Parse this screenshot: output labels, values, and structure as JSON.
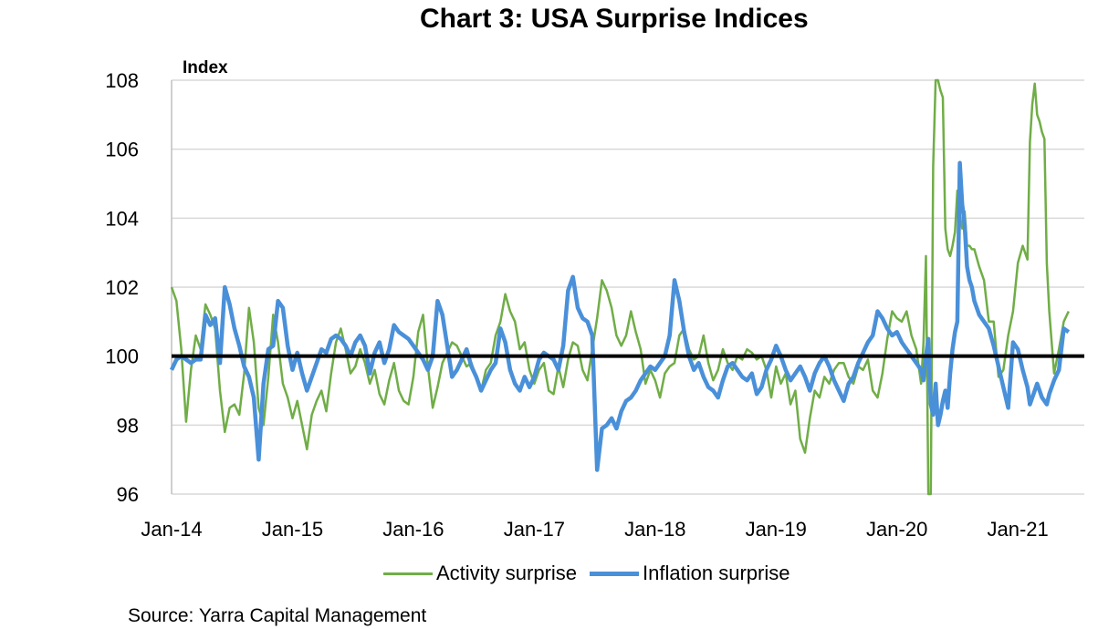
{
  "title": "Chart 3: USA Surprise Indices",
  "source": "Source: Yarra Capital Management",
  "colors": {
    "activity": "#70AD47",
    "inflation": "#4A90D9",
    "baseline": "#000000",
    "grid": "#D9D9D9"
  },
  "chart_data": {
    "type": "line",
    "title": "Chart 3: USA Surprise Indices",
    "ylabel": "Index",
    "xlabel": "",
    "ylim": [
      96,
      108
    ],
    "yticks": [
      "96",
      "98",
      "100",
      "102",
      "104",
      "106",
      "108"
    ],
    "xlim": [
      2014.0,
      2021.55
    ],
    "xtick_labels": [
      "Jan-14",
      "Jan-15",
      "Jan-16",
      "Jan-17",
      "Jan-18",
      "Jan-19",
      "Jan-20",
      "Jan-21"
    ],
    "xtick_positions": [
      2014,
      2015,
      2016,
      2017,
      2018,
      2019,
      2020,
      2021
    ],
    "grid": true,
    "reference_line": 100,
    "legend_position": "bottom",
    "series": [
      {
        "name": "Activity surprise",
        "x": [
          2014.0,
          2014.04,
          2014.08,
          2014.12,
          2014.16,
          2014.2,
          2014.24,
          2014.28,
          2014.32,
          2014.36,
          2014.4,
          2014.44,
          2014.48,
          2014.52,
          2014.56,
          2014.6,
          2014.64,
          2014.68,
          2014.72,
          2014.76,
          2014.8,
          2014.84,
          2014.88,
          2014.92,
          2014.96,
          2015.0,
          2015.04,
          2015.08,
          2015.12,
          2015.16,
          2015.2,
          2015.24,
          2015.28,
          2015.32,
          2015.36,
          2015.4,
          2015.44,
          2015.48,
          2015.52,
          2015.56,
          2015.6,
          2015.64,
          2015.68,
          2015.72,
          2015.76,
          2015.8,
          2015.84,
          2015.88,
          2015.92,
          2015.96,
          2016.0,
          2016.04,
          2016.08,
          2016.12,
          2016.16,
          2016.2,
          2016.24,
          2016.28,
          2016.32,
          2016.36,
          2016.4,
          2016.44,
          2016.48,
          2016.52,
          2016.56,
          2016.6,
          2016.64,
          2016.68,
          2016.72,
          2016.76,
          2016.8,
          2016.84,
          2016.88,
          2016.92,
          2016.96,
          2017.0,
          2017.04,
          2017.08,
          2017.12,
          2017.16,
          2017.2,
          2017.24,
          2017.28,
          2017.32,
          2017.36,
          2017.4,
          2017.44,
          2017.48,
          2017.52,
          2017.56,
          2017.6,
          2017.64,
          2017.68,
          2017.72,
          2017.76,
          2017.8,
          2017.84,
          2017.88,
          2017.92,
          2017.96,
          2018.0,
          2018.04,
          2018.08,
          2018.12,
          2018.16,
          2018.2,
          2018.24,
          2018.28,
          2018.32,
          2018.36,
          2018.4,
          2018.44,
          2018.48,
          2018.52,
          2018.56,
          2018.6,
          2018.64,
          2018.68,
          2018.72,
          2018.76,
          2018.8,
          2018.84,
          2018.88,
          2018.92,
          2018.96,
          2019.0,
          2019.04,
          2019.08,
          2019.12,
          2019.16,
          2019.2,
          2019.24,
          2019.28,
          2019.32,
          2019.36,
          2019.4,
          2019.44,
          2019.48,
          2019.52,
          2019.56,
          2019.6,
          2019.64,
          2019.68,
          2019.72,
          2019.76,
          2019.8,
          2019.84,
          2019.88,
          2019.92,
          2019.96,
          2020.0,
          2020.04,
          2020.08,
          2020.12,
          2020.16,
          2020.2,
          2020.22,
          2020.24,
          2020.26,
          2020.28,
          2020.3,
          2020.32,
          2020.34,
          2020.36,
          2020.38,
          2020.4,
          2020.42,
          2020.44,
          2020.46,
          2020.48,
          2020.5,
          2020.52,
          2020.54,
          2020.56,
          2020.58,
          2020.6,
          2020.62,
          2020.64,
          2020.68,
          2020.72,
          2020.76,
          2020.8,
          2020.84,
          2020.88,
          2020.92,
          2020.96,
          2021.0,
          2021.04,
          2021.08,
          2021.1,
          2021.12,
          2021.14,
          2021.16,
          2021.18,
          2021.2,
          2021.22,
          2021.24,
          2021.26,
          2021.3,
          2021.34,
          2021.38,
          2021.42
        ],
        "values": [
          102.0,
          101.6,
          100.2,
          98.1,
          99.6,
          100.6,
          100.2,
          101.5,
          101.2,
          100.8,
          99.0,
          97.8,
          98.5,
          98.6,
          98.3,
          99.5,
          101.4,
          100.4,
          98.5,
          98.0,
          99.4,
          101.2,
          100.4,
          99.2,
          98.8,
          98.2,
          98.7,
          98.0,
          97.3,
          98.3,
          98.7,
          99.0,
          98.4,
          99.5,
          100.4,
          100.8,
          100.2,
          99.5,
          99.7,
          100.2,
          99.8,
          99.2,
          99.6,
          98.9,
          98.6,
          99.3,
          99.8,
          99.0,
          98.7,
          98.6,
          99.4,
          100.7,
          101.2,
          99.7,
          98.5,
          99.1,
          99.8,
          100.1,
          100.4,
          100.3,
          100.0,
          99.7,
          99.8,
          99.4,
          99.0,
          99.6,
          99.8,
          100.6,
          101.0,
          101.8,
          101.3,
          101.0,
          100.2,
          100.4,
          99.6,
          99.2,
          99.6,
          99.8,
          99.0,
          98.9,
          99.7,
          99.1,
          99.9,
          100.4,
          100.3,
          99.6,
          99.3,
          100.2,
          101.1,
          102.2,
          101.9,
          101.4,
          100.6,
          100.3,
          100.6,
          101.3,
          100.7,
          100.2,
          99.2,
          99.6,
          99.3,
          98.8,
          99.5,
          99.7,
          99.8,
          100.6,
          100.8,
          100.2,
          99.9,
          100.0,
          100.6,
          99.8,
          99.3,
          99.6,
          100.2,
          99.8,
          99.6,
          100.0,
          99.9,
          100.2,
          100.1,
          99.9,
          100.0,
          99.6,
          98.8,
          99.7,
          99.2,
          99.5,
          98.6,
          99.0,
          97.6,
          97.2,
          98.2,
          99.0,
          98.8,
          99.4,
          99.2,
          99.6,
          99.8,
          99.8,
          99.4,
          99.2,
          99.7,
          99.6,
          99.9,
          99.0,
          98.8,
          99.5,
          100.5,
          101.3,
          101.1,
          101.0,
          101.3,
          100.6,
          100.2,
          99.2,
          100.4,
          102.9,
          95.6,
          96.0,
          105.5,
          108.0,
          108.0,
          107.7,
          107.5,
          103.7,
          103.1,
          102.9,
          103.2,
          103.6,
          104.8,
          104.1,
          103.7,
          104.2,
          103.2,
          103.2,
          103.1,
          103.1,
          102.6,
          102.2,
          101.0,
          101.0,
          99.4,
          99.6,
          100.6,
          101.3,
          102.7,
          103.2,
          102.8,
          106.2,
          107.3,
          107.9,
          107.0,
          106.8,
          106.5,
          106.3,
          102.7,
          101.3,
          99.5,
          100.2,
          101.0,
          101.3
        ]
      },
      {
        "name": "Inflation surprise",
        "x": [
          2014.0,
          2014.04,
          2014.08,
          2014.12,
          2014.16,
          2014.2,
          2014.24,
          2014.28,
          2014.32,
          2014.36,
          2014.4,
          2014.44,
          2014.48,
          2014.52,
          2014.56,
          2014.6,
          2014.64,
          2014.68,
          2014.72,
          2014.76,
          2014.8,
          2014.84,
          2014.88,
          2014.92,
          2014.96,
          2015.0,
          2015.04,
          2015.08,
          2015.12,
          2015.16,
          2015.2,
          2015.24,
          2015.28,
          2015.32,
          2015.36,
          2015.4,
          2015.44,
          2015.48,
          2015.52,
          2015.56,
          2015.6,
          2015.64,
          2015.68,
          2015.72,
          2015.76,
          2015.8,
          2015.84,
          2015.88,
          2015.92,
          2015.96,
          2016.0,
          2016.04,
          2016.08,
          2016.12,
          2016.16,
          2016.2,
          2016.24,
          2016.28,
          2016.32,
          2016.36,
          2016.4,
          2016.44,
          2016.48,
          2016.52,
          2016.56,
          2016.6,
          2016.64,
          2016.68,
          2016.72,
          2016.76,
          2016.8,
          2016.84,
          2016.88,
          2016.92,
          2016.96,
          2017.0,
          2017.04,
          2017.08,
          2017.12,
          2017.16,
          2017.2,
          2017.24,
          2017.28,
          2017.32,
          2017.36,
          2017.4,
          2017.44,
          2017.48,
          2017.52,
          2017.56,
          2017.6,
          2017.64,
          2017.68,
          2017.72,
          2017.76,
          2017.8,
          2017.84,
          2017.88,
          2017.92,
          2017.96,
          2018.0,
          2018.04,
          2018.08,
          2018.12,
          2018.16,
          2018.2,
          2018.24,
          2018.28,
          2018.32,
          2018.36,
          2018.4,
          2018.44,
          2018.48,
          2018.52,
          2018.56,
          2018.6,
          2018.64,
          2018.68,
          2018.72,
          2018.76,
          2018.8,
          2018.84,
          2018.88,
          2018.92,
          2018.96,
          2019.0,
          2019.04,
          2019.08,
          2019.12,
          2019.16,
          2019.2,
          2019.24,
          2019.28,
          2019.32,
          2019.36,
          2019.4,
          2019.44,
          2019.48,
          2019.52,
          2019.56,
          2019.6,
          2019.64,
          2019.68,
          2019.72,
          2019.76,
          2019.8,
          2019.84,
          2019.88,
          2019.92,
          2019.96,
          2020.0,
          2020.04,
          2020.08,
          2020.12,
          2020.16,
          2020.2,
          2020.22,
          2020.24,
          2020.26,
          2020.28,
          2020.3,
          2020.32,
          2020.34,
          2020.36,
          2020.38,
          2020.4,
          2020.42,
          2020.44,
          2020.46,
          2020.48,
          2020.5,
          2020.52,
          2020.54,
          2020.56,
          2020.58,
          2020.6,
          2020.62,
          2020.64,
          2020.68,
          2020.72,
          2020.76,
          2020.8,
          2020.84,
          2020.88,
          2020.92,
          2020.96,
          2021.0,
          2021.04,
          2021.08,
          2021.1,
          2021.12,
          2021.14,
          2021.16,
          2021.18,
          2021.2,
          2021.22,
          2021.24,
          2021.26,
          2021.3,
          2021.34,
          2021.38,
          2021.42
        ],
        "values": [
          99.6,
          99.9,
          100.0,
          99.9,
          99.8,
          99.9,
          99.9,
          101.2,
          100.9,
          101.1,
          99.8,
          102.0,
          101.5,
          100.8,
          100.3,
          99.7,
          99.4,
          98.8,
          97.0,
          99.2,
          100.2,
          100.3,
          101.6,
          101.4,
          100.3,
          99.6,
          100.1,
          99.5,
          99.0,
          99.4,
          99.8,
          100.2,
          100.1,
          100.5,
          100.6,
          100.5,
          100.3,
          100.0,
          100.4,
          100.6,
          100.3,
          99.5,
          100.1,
          100.4,
          99.8,
          100.2,
          100.9,
          100.7,
          100.6,
          100.5,
          100.3,
          100.1,
          99.9,
          99.6,
          100.0,
          101.6,
          101.2,
          100.3,
          99.4,
          99.6,
          99.9,
          100.2,
          99.7,
          99.4,
          99.0,
          99.3,
          99.6,
          99.8,
          100.8,
          100.4,
          99.6,
          99.2,
          99.0,
          99.4,
          99.1,
          99.4,
          99.9,
          100.1,
          100.0,
          99.9,
          99.6,
          100.3,
          101.9,
          102.3,
          101.4,
          101.1,
          101.0,
          100.6,
          96.7,
          97.9,
          98.0,
          98.2,
          97.9,
          98.4,
          98.7,
          98.8,
          99.0,
          99.3,
          99.5,
          99.7,
          99.6,
          99.8,
          100.0,
          100.6,
          102.2,
          101.6,
          100.7,
          100.0,
          99.6,
          99.8,
          99.4,
          99.1,
          99.0,
          98.8,
          99.3,
          99.7,
          99.8,
          99.6,
          99.4,
          99.3,
          99.5,
          98.9,
          99.1,
          99.6,
          99.9,
          100.3,
          100.0,
          99.6,
          99.3,
          99.5,
          99.7,
          99.4,
          99.0,
          99.5,
          99.8,
          100.0,
          99.7,
          99.3,
          99.0,
          98.7,
          99.2,
          99.4,
          99.8,
          100.1,
          100.4,
          100.6,
          101.3,
          101.1,
          100.8,
          100.6,
          100.7,
          100.4,
          100.2,
          100.0,
          99.8,
          99.6,
          99.3,
          100.0,
          100.5,
          98.6,
          98.3,
          99.2,
          98.0,
          98.3,
          98.7,
          99.0,
          98.5,
          99.5,
          100.2,
          100.7,
          101.0,
          105.6,
          104.4,
          103.8,
          102.6,
          102.2,
          102.0,
          101.6,
          101.2,
          101.0,
          100.8,
          100.3,
          99.7,
          99.1,
          98.5,
          100.4,
          100.2,
          99.6,
          99.1,
          98.6,
          98.8,
          99.0,
          99.2,
          99.0,
          98.8,
          98.7,
          98.6,
          98.9,
          99.3,
          99.6,
          100.8,
          100.7
        ]
      }
    ]
  },
  "legend": [
    {
      "label": "Activity surprise",
      "color": "#70AD47"
    },
    {
      "label": "Inflation surprise",
      "color": "#4A90D9"
    }
  ]
}
